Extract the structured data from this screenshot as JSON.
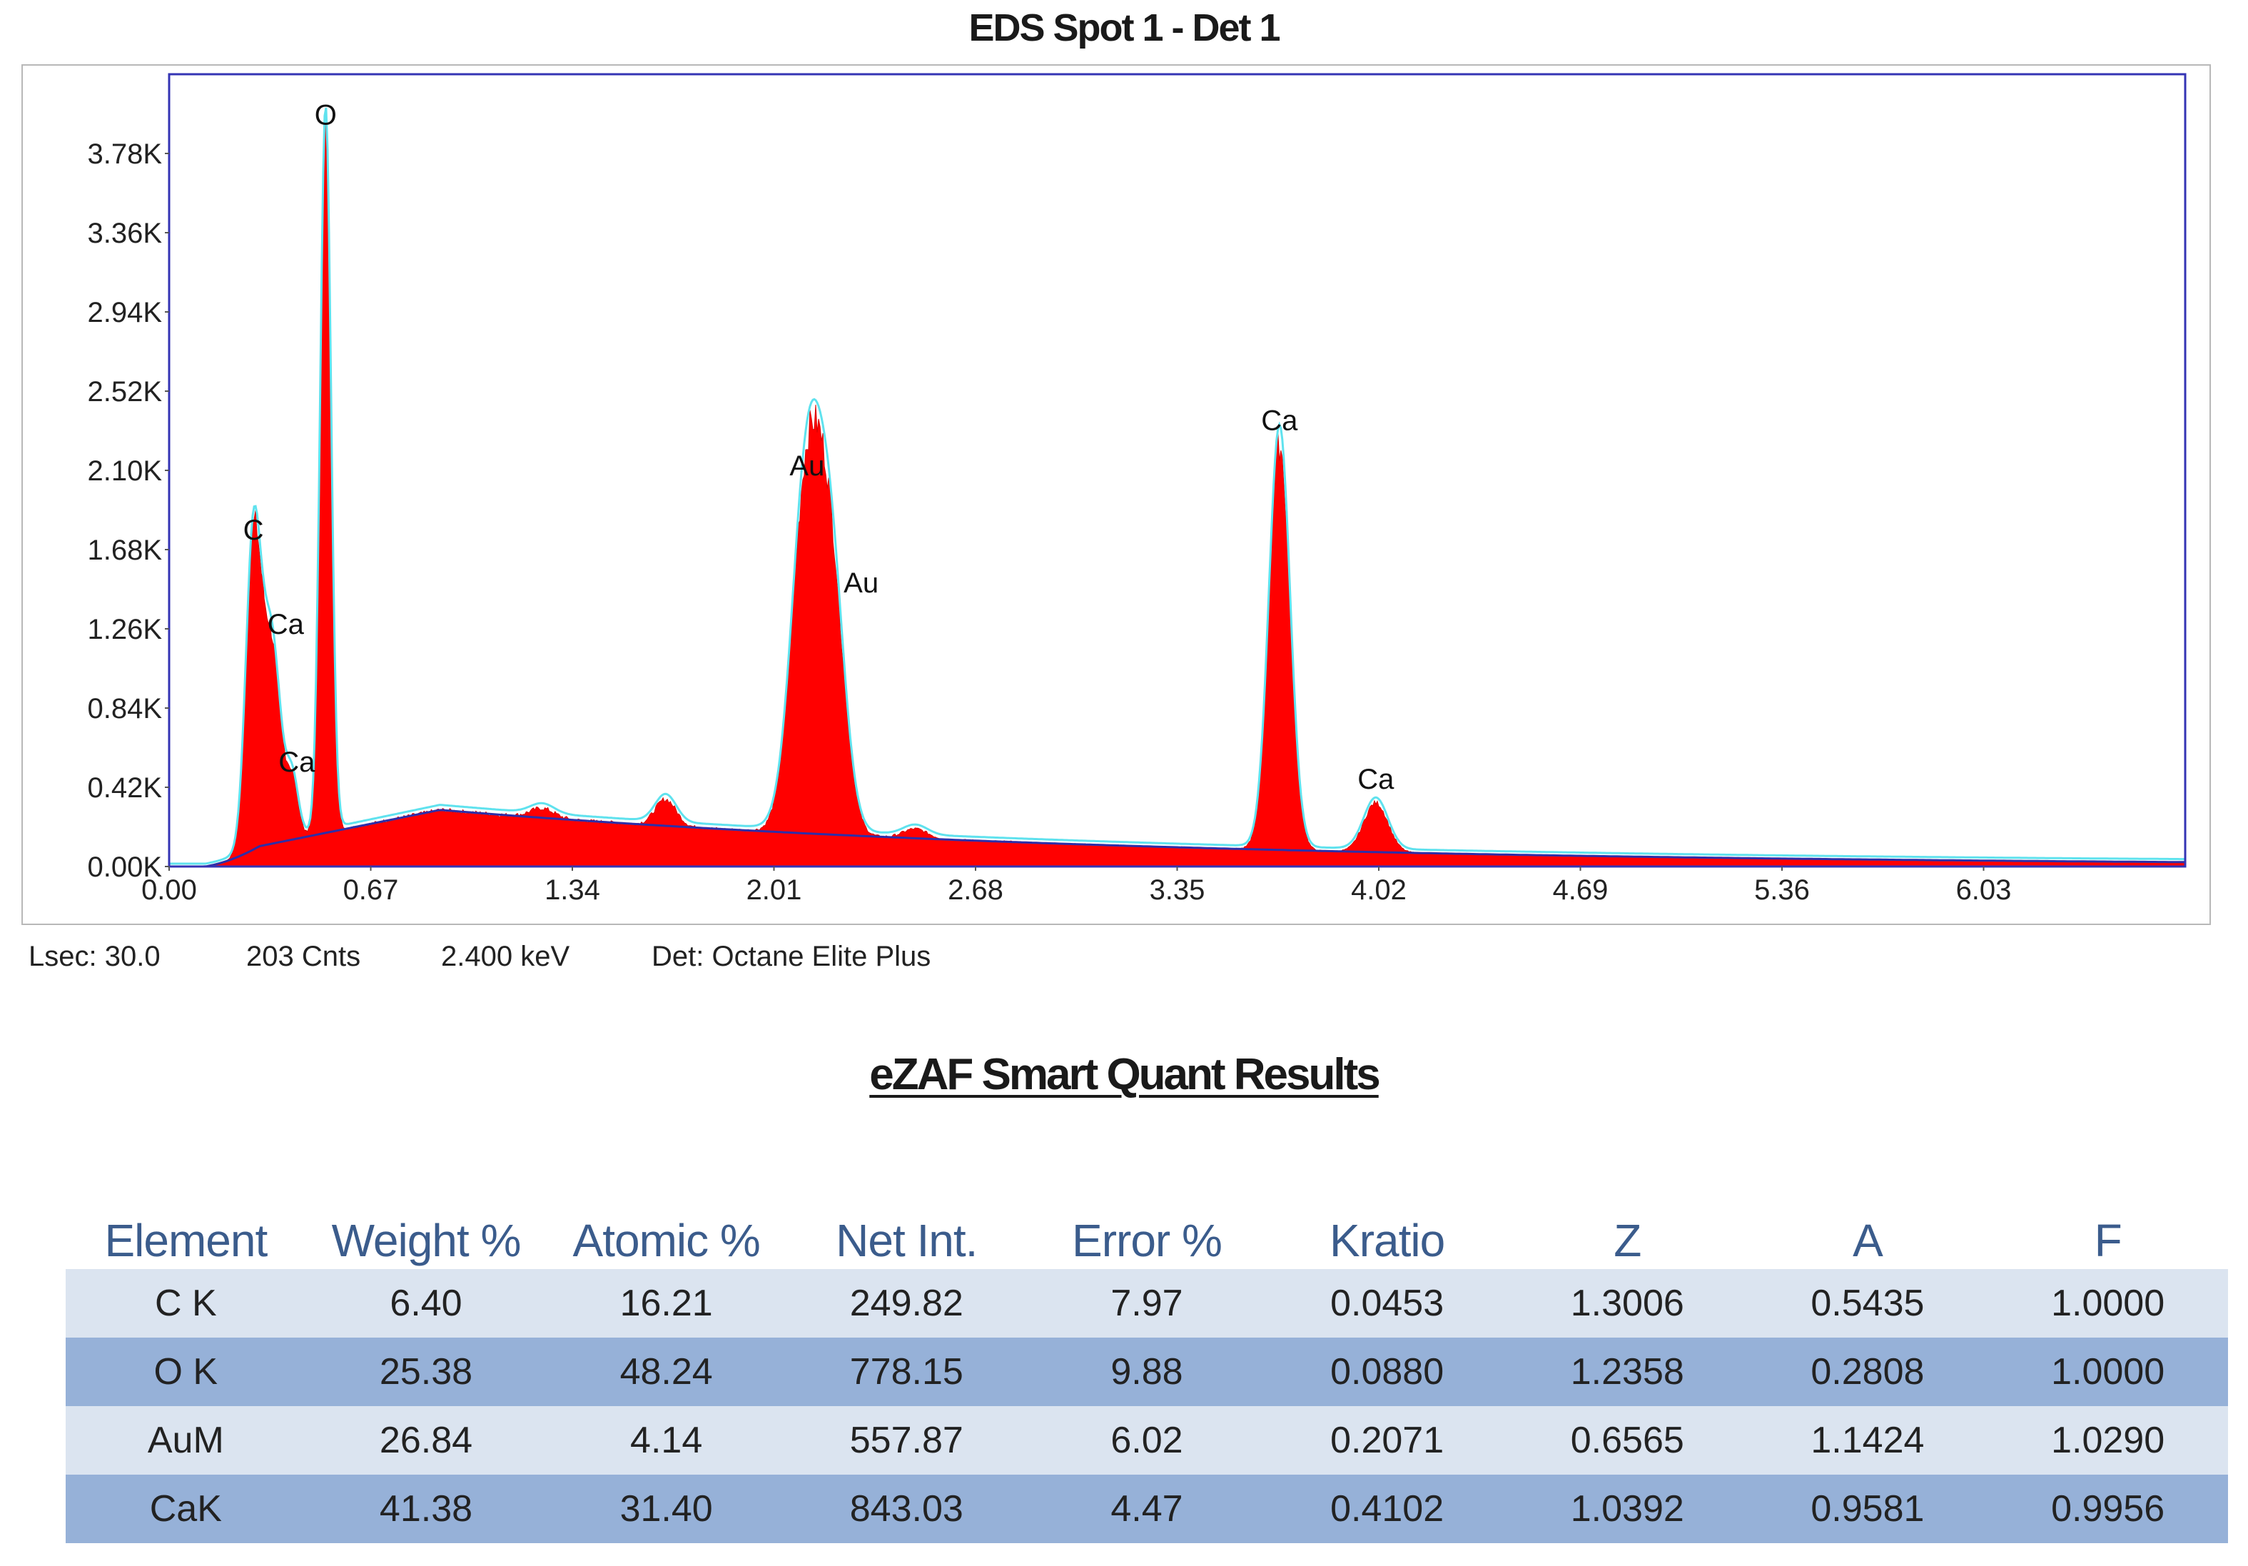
{
  "chart_data": {
    "type": "area",
    "title": "EDS Spot 1 - Det 1",
    "xlabel": "",
    "ylabel": "",
    "xlim": [
      0.0,
      6.7
    ],
    "ylim": [
      0.0,
      4.2
    ],
    "x_ticks": [
      "0.00",
      "0.67",
      "1.34",
      "2.01",
      "2.68",
      "3.35",
      "4.02",
      "4.69",
      "5.36",
      "6.03"
    ],
    "y_ticks": [
      "0.00K",
      "0.42K",
      "0.84K",
      "1.26K",
      "1.68K",
      "2.10K",
      "2.52K",
      "2.94K",
      "3.36K",
      "3.78K"
    ],
    "grid": false,
    "colors": {
      "fill": "#ff0000",
      "fit_line": "#5fe2ee",
      "background_line": "#2e2ea8",
      "axis": "#3434b4"
    },
    "peaks": [
      {
        "label": "C",
        "energy_keV": 0.28,
        "counts_K": 1.65
      },
      {
        "label": "Ca",
        "energy_keV": 0.34,
        "counts_K": 1.15
      },
      {
        "label": "Ca",
        "energy_keV": 0.41,
        "counts_K": 0.42
      },
      {
        "label": "O",
        "energy_keV": 0.52,
        "counts_K": 3.85
      },
      {
        "label": "Au",
        "energy_keV": 2.12,
        "counts_K": 1.99
      },
      {
        "label": "Au",
        "energy_keV": 2.2,
        "counts_K": 1.37
      },
      {
        "label": "Ca",
        "energy_keV": 3.69,
        "counts_K": 2.23
      },
      {
        "label": "Ca",
        "energy_keV": 4.01,
        "counts_K": 0.33
      }
    ]
  },
  "status": {
    "lsec": "Lsec: 30.0",
    "cnts": "203 Cnts",
    "kev": "2.400 keV",
    "det": "Det: Octane Elite Plus"
  },
  "quant": {
    "title": "eZAF Smart Quant Results",
    "headers": [
      "Element",
      "Weight %",
      "Atomic %",
      "Net Int.",
      "Error %",
      "Kratio",
      "Z",
      "A",
      "F"
    ],
    "rows": [
      [
        "C K",
        "6.40",
        "16.21",
        "249.82",
        "7.97",
        "0.0453",
        "1.3006",
        "0.5435",
        "1.0000"
      ],
      [
        "O K",
        "25.38",
        "48.24",
        "778.15",
        "9.88",
        "0.0880",
        "1.2358",
        "0.2808",
        "1.0000"
      ],
      [
        "AuM",
        "26.84",
        "4.14",
        "557.87",
        "6.02",
        "0.2071",
        "0.6565",
        "1.1424",
        "1.0290"
      ],
      [
        "CaK",
        "41.38",
        "31.40",
        "843.03",
        "4.47",
        "0.4102",
        "1.0392",
        "0.9581",
        "0.9956"
      ]
    ]
  }
}
